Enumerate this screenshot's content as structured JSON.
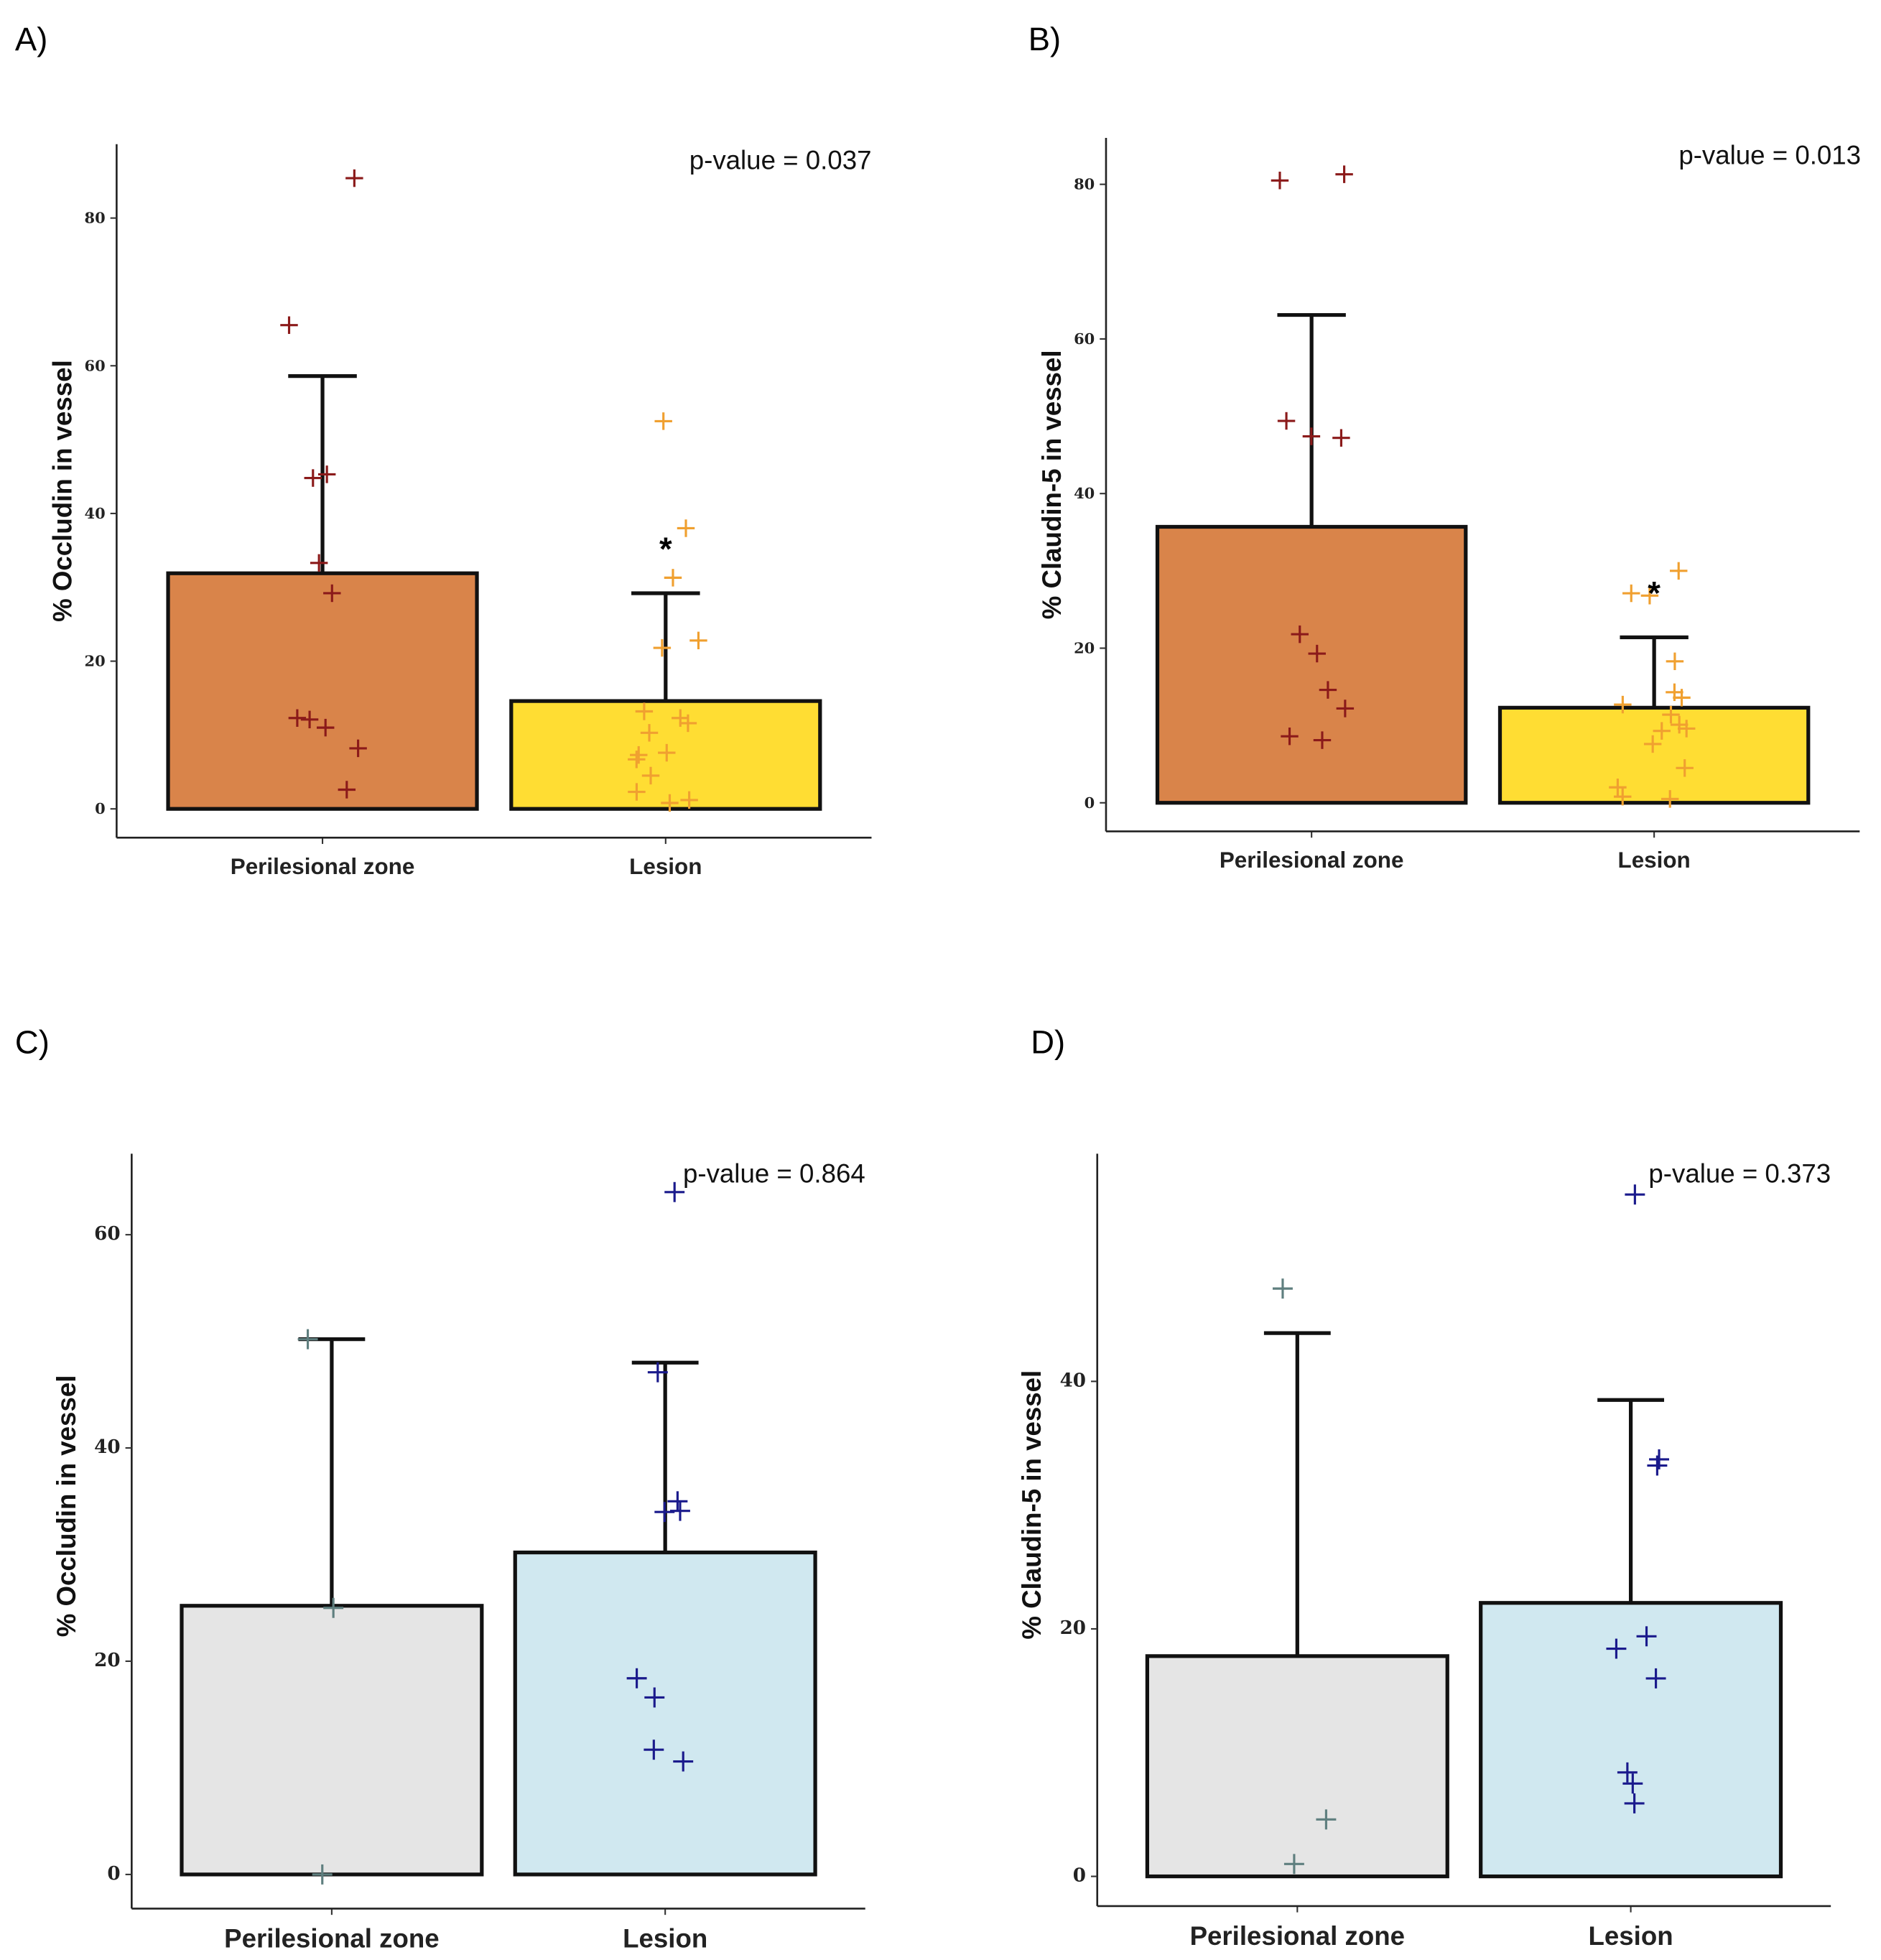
{
  "chart_data": [
    {
      "panel": "A)",
      "type": "bar",
      "ylabel": "% Occludin in vessel",
      "xlabel": "",
      "categories": [
        "Perilesional zone",
        "Lesion"
      ],
      "values": [
        31.9,
        14.6
      ],
      "error_upper": [
        58.6,
        29.2
      ],
      "ylim": [
        -3.9,
        90
      ],
      "yticks": [
        0,
        20,
        40,
        60,
        80
      ],
      "annotation": "p-value = 0.037",
      "significance_marker": {
        "label": "*",
        "category": "Lesion",
        "y": 35.7
      },
      "bar_colors": [
        "#D9844A",
        "#FFDD33"
      ],
      "point_colors": [
        "#8B1A1A",
        "#F0A030"
      ],
      "points": [
        [
          85.4,
          65.5,
          45.3,
          44.8,
          33.3,
          29.2,
          12.3,
          12.1,
          11.0,
          8.2,
          2.6
        ],
        [
          52.5,
          38.0,
          31.3,
          22.8,
          21.8,
          13.2,
          12.3,
          11.6,
          10.3,
          7.6,
          7.3,
          6.7,
          4.5,
          2.3,
          1.2,
          0.8
        ]
      ]
    },
    {
      "panel": "B)",
      "type": "bar",
      "ylabel": "% Claudin-5 in vessel",
      "xlabel": "",
      "categories": [
        "Perilesional zone",
        "Lesion"
      ],
      "values": [
        35.7,
        12.3
      ],
      "error_upper": [
        63.1,
        21.4
      ],
      "ylim": [
        -3.7,
        86
      ],
      "yticks": [
        0,
        20,
        40,
        60,
        80
      ],
      "annotation": "p-value = 0.013",
      "significance_marker": {
        "label": "*",
        "category": "Lesion",
        "y": 27.6
      },
      "bar_colors": [
        "#D9844A",
        "#FFDD33"
      ],
      "point_colors": [
        "#8B1A1A",
        "#F0A030"
      ],
      "points": [
        [
          81.3,
          80.5,
          49.4,
          47.4,
          47.2,
          21.8,
          19.3,
          14.6,
          12.2,
          8.6,
          8.1
        ],
        [
          30.0,
          27.1,
          26.8,
          18.3,
          14.3,
          13.6,
          12.7,
          11.4,
          10.1,
          9.6,
          9.3,
          7.6,
          4.5,
          2.0,
          0.8,
          0.5
        ]
      ]
    },
    {
      "panel": "C)",
      "type": "bar",
      "ylabel": "% Occludin in vessel",
      "xlabel": "",
      "categories": [
        "Perilesional zone",
        "Lesion"
      ],
      "values": [
        25.2,
        30.2
      ],
      "error_upper": [
        50.2,
        48.0
      ],
      "ylim": [
        -3.2,
        67.6
      ],
      "yticks": [
        0,
        20,
        40,
        60
      ],
      "annotation": "p-value = 0.864",
      "bar_colors": [
        "#E5E5E5",
        "#D0E8F0"
      ],
      "point_colors": [
        "#5F7F7F",
        "#1A1A8C"
      ],
      "points": [
        [
          50.2,
          25.0,
          0.0
        ],
        [
          64.0,
          47.1,
          35.0,
          34.1,
          34.0,
          18.4,
          16.6,
          11.7,
          10.6
        ]
      ]
    },
    {
      "panel": "D)",
      "type": "bar",
      "ylabel": "% Claudin-5 in vessel",
      "xlabel": "",
      "categories": [
        "Perilesional zone",
        "Lesion"
      ],
      "values": [
        17.8,
        22.1
      ],
      "error_upper": [
        43.9,
        38.5
      ],
      "ylim": [
        -2.4,
        58.4
      ],
      "yticks": [
        0,
        20,
        40
      ],
      "annotation": "p-value = 0.373",
      "bar_colors": [
        "#E5E5E5",
        "#D0E8F0"
      ],
      "point_colors": [
        "#5F7F7F",
        "#1A1A8C"
      ],
      "points": [
        [
          47.5,
          4.6,
          1.0
        ],
        [
          55.1,
          33.7,
          33.2,
          19.4,
          18.4,
          16.0,
          8.4,
          7.5,
          5.9
        ]
      ]
    }
  ]
}
